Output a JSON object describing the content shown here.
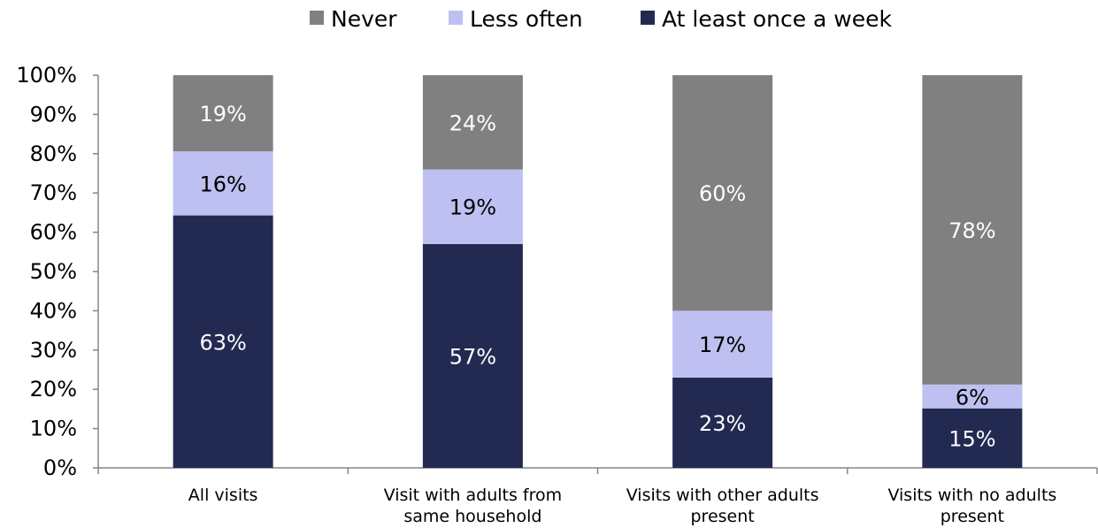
{
  "chart_data": {
    "type": "bar",
    "stacked": true,
    "percent_stacked": true,
    "categories": [
      [
        "All visits"
      ],
      [
        "Visit with adults from",
        "same household"
      ],
      [
        "Visits with other adults",
        "present"
      ],
      [
        "Visits with no adults",
        "present"
      ]
    ],
    "series": [
      {
        "name": "At least once a week",
        "color": "#232A52",
        "label_color": "#FFFFFF",
        "values": [
          63,
          57,
          23,
          15
        ],
        "labels": [
          "63%",
          "57%",
          "23%",
          "15%"
        ]
      },
      {
        "name": "Less often",
        "color": "#BFC0F2",
        "label_color": "#000000",
        "values": [
          16,
          19,
          17,
          6
        ],
        "labels": [
          "16%",
          "19%",
          "17%",
          "6%"
        ]
      },
      {
        "name": "Never",
        "color": "#808080",
        "label_color": "#FFFFFF",
        "values": [
          19,
          24,
          60,
          78
        ],
        "labels": [
          "19%",
          "24%",
          "60%",
          "78%"
        ]
      }
    ],
    "legend_order": [
      "Never",
      "Less often",
      "At least once a week"
    ],
    "ylim": [
      0,
      100
    ],
    "yticks": [
      "0%",
      "10%",
      "20%",
      "30%",
      "40%",
      "50%",
      "60%",
      "70%",
      "80%",
      "90%",
      "100%"
    ],
    "legend_position": "top",
    "grid": false
  }
}
